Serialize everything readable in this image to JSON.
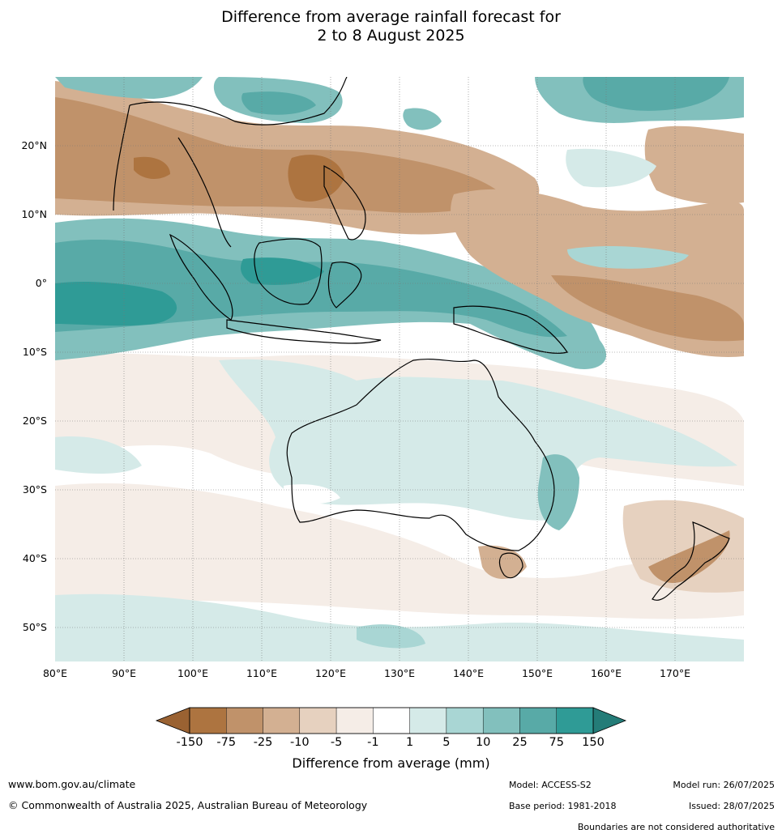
{
  "title": {
    "line1": "Difference from average rainfall forecast for",
    "line2": "2 to 8 August 2025"
  },
  "map": {
    "lon_ticks": [
      "80°E",
      "90°E",
      "100°E",
      "110°E",
      "120°E",
      "130°E",
      "140°E",
      "150°E",
      "160°E",
      "170°E"
    ],
    "lat_ticks": [
      "20°N",
      "10°N",
      "0°",
      "10°S",
      "20°S",
      "30°S",
      "40°S",
      "50°S"
    ],
    "lon_range": [
      80,
      180
    ],
    "lat_range": [
      -55,
      30
    ],
    "grid": true
  },
  "colorbar": {
    "title": "Difference from average (mm)",
    "labels": [
      "-150",
      "-75",
      "-25",
      "-10",
      "-5",
      "-1",
      "1",
      "5",
      "10",
      "25",
      "75",
      "150"
    ],
    "colors": [
      "#9a6232",
      "#ad7440",
      "#c0926a",
      "#d3b092",
      "#e6d1bf",
      "#f5ede7",
      "#ffffff",
      "#d5eae8",
      "#a9d6d4",
      "#82c0bd",
      "#58aaa7",
      "#2f9b96",
      "#247c78"
    ]
  },
  "footer": {
    "website": "www.bom.gov.au/climate",
    "copyright": "© Commonwealth of Australia 2025, Australian Bureau of Meteorology",
    "model": "Model: ACCESS-S2",
    "base_period": "Base period: 1981-2018",
    "model_run": "Model run: 26/07/2025",
    "issued": "Issued: 28/07/2025",
    "boundaries": "Boundaries are not considered authoritative"
  }
}
